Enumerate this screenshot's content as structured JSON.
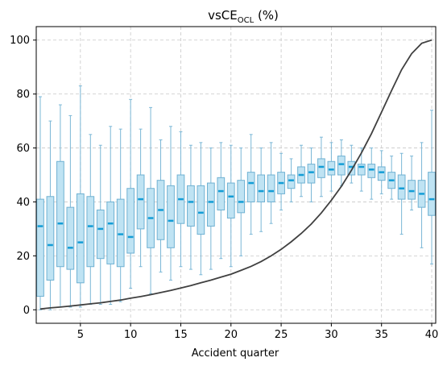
{
  "chart_data": {
    "type": "box",
    "title_main": "vsCE",
    "title_sub": "OCL",
    "title_suffix": " (%)",
    "xlabel": "Accident quarter",
    "ylabel": "",
    "xlim": [
      0.6,
      40.4
    ],
    "ylim": [
      -5,
      105
    ],
    "xticks": [
      5,
      10,
      15,
      20,
      25,
      30,
      35,
      40
    ],
    "yticks": [
      0,
      20,
      40,
      60,
      80,
      100
    ],
    "grid": true,
    "colors": {
      "box_fill": "#bfe3f3",
      "box_edge": "#6fb1d2",
      "median": "#139dd6",
      "line": "#404040"
    },
    "boxes": [
      {
        "x": 1,
        "low": 0,
        "q1": 5,
        "median": 31,
        "q3": 41,
        "high": 79
      },
      {
        "x": 2,
        "low": 0,
        "q1": 11,
        "median": 24,
        "q3": 42,
        "high": 70
      },
      {
        "x": 3,
        "low": 1,
        "q1": 16,
        "median": 32,
        "q3": 55,
        "high": 76
      },
      {
        "x": 4,
        "low": 1,
        "q1": 15,
        "median": 23,
        "q3": 38,
        "high": 72
      },
      {
        "x": 5,
        "low": 1,
        "q1": 10,
        "median": 25,
        "q3": 43,
        "high": 83
      },
      {
        "x": 6,
        "low": 2,
        "q1": 16,
        "median": 31,
        "q3": 42,
        "high": 65
      },
      {
        "x": 7,
        "low": 2,
        "q1": 19,
        "median": 30,
        "q3": 37,
        "high": 61
      },
      {
        "x": 8,
        "low": 2,
        "q1": 17,
        "median": 32,
        "q3": 40,
        "high": 68
      },
      {
        "x": 9,
        "low": 3,
        "q1": 16,
        "median": 28,
        "q3": 41,
        "high": 67
      },
      {
        "x": 10,
        "low": 8,
        "q1": 21,
        "median": 27,
        "q3": 45,
        "high": 78
      },
      {
        "x": 11,
        "low": 16,
        "q1": 30,
        "median": 41,
        "q3": 50,
        "high": 67
      },
      {
        "x": 12,
        "low": 6,
        "q1": 23,
        "median": 34,
        "q3": 45,
        "high": 75
      },
      {
        "x": 13,
        "low": 14,
        "q1": 26,
        "median": 37,
        "q3": 48,
        "high": 63
      },
      {
        "x": 14,
        "low": 11,
        "q1": 23,
        "median": 33,
        "q3": 46,
        "high": 68
      },
      {
        "x": 15,
        "low": 16,
        "q1": 32,
        "median": 41,
        "q3": 50,
        "high": 66
      },
      {
        "x": 16,
        "low": 15,
        "q1": 31,
        "median": 40,
        "q3": 46,
        "high": 61
      },
      {
        "x": 17,
        "low": 13,
        "q1": 28,
        "median": 36,
        "q3": 46,
        "high": 62
      },
      {
        "x": 18,
        "low": 15,
        "q1": 31,
        "median": 40,
        "q3": 47,
        "high": 60
      },
      {
        "x": 19,
        "low": 19,
        "q1": 37,
        "median": 44,
        "q3": 49,
        "high": 62
      },
      {
        "x": 20,
        "low": 16,
        "q1": 34,
        "median": 42,
        "q3": 47,
        "high": 61
      },
      {
        "x": 21,
        "low": 20,
        "q1": 36,
        "median": 40,
        "q3": 48,
        "high": 60
      },
      {
        "x": 22,
        "low": 28,
        "q1": 40,
        "median": 47,
        "q3": 51,
        "high": 65
      },
      {
        "x": 23,
        "low": 29,
        "q1": 40,
        "median": 44,
        "q3": 50,
        "high": 60
      },
      {
        "x": 24,
        "low": 32,
        "q1": 40,
        "median": 44,
        "q3": 50,
        "high": 62
      },
      {
        "x": 25,
        "low": 37,
        "q1": 43,
        "median": 47,
        "q3": 51,
        "high": 58
      },
      {
        "x": 26,
        "low": 40,
        "q1": 45,
        "median": 48,
        "q3": 50,
        "high": 56
      },
      {
        "x": 27,
        "low": 42,
        "q1": 47,
        "median": 50,
        "q3": 53,
        "high": 61
      },
      {
        "x": 28,
        "low": 40,
        "q1": 47,
        "median": 51,
        "q3": 54,
        "high": 60
      },
      {
        "x": 29,
        "low": 42,
        "q1": 49,
        "median": 53,
        "q3": 56,
        "high": 64
      },
      {
        "x": 30,
        "low": 44,
        "q1": 50,
        "median": 52,
        "q3": 55,
        "high": 62
      },
      {
        "x": 31,
        "low": 46,
        "q1": 50,
        "median": 54,
        "q3": 57,
        "high": 63
      },
      {
        "x": 32,
        "low": 47,
        "q1": 50,
        "median": 53,
        "q3": 55,
        "high": 61
      },
      {
        "x": 33,
        "low": 44,
        "q1": 50,
        "median": 53,
        "q3": 54,
        "high": 60
      },
      {
        "x": 34,
        "low": 41,
        "q1": 49,
        "median": 52,
        "q3": 54,
        "high": 60
      },
      {
        "x": 35,
        "low": 43,
        "q1": 48,
        "median": 51,
        "q3": 53,
        "high": 59
      },
      {
        "x": 36,
        "low": 41,
        "q1": 45,
        "median": 48,
        "q3": 51,
        "high": 57
      },
      {
        "x": 37,
        "low": 28,
        "q1": 41,
        "median": 45,
        "q3": 50,
        "high": 58
      },
      {
        "x": 38,
        "low": 37,
        "q1": 41,
        "median": 44,
        "q3": 48,
        "high": 57
      },
      {
        "x": 39,
        "low": 23,
        "q1": 38,
        "median": 43,
        "q3": 48,
        "high": 62
      },
      {
        "x": 40,
        "low": 17,
        "q1": 35,
        "median": 41,
        "q3": 51,
        "high": 74
      }
    ],
    "line": {
      "x": [
        1,
        2,
        3,
        4,
        5,
        6,
        7,
        8,
        9,
        10,
        11,
        12,
        13,
        14,
        15,
        16,
        17,
        18,
        19,
        20,
        21,
        22,
        23,
        24,
        25,
        26,
        27,
        28,
        29,
        30,
        31,
        32,
        33,
        34,
        35,
        36,
        37,
        38,
        39,
        40
      ],
      "y": [
        0.3,
        0.7,
        1.0,
        1.4,
        1.8,
        2.2,
        2.6,
        3.1,
        3.6,
        4.3,
        4.9,
        5.6,
        6.4,
        7.2,
        8.1,
        9.0,
        10.0,
        11.0,
        12.1,
        13.2,
        14.6,
        16.1,
        17.9,
        20.0,
        22.4,
        25.2,
        28.3,
        31.8,
        35.9,
        40.6,
        45.8,
        51.7,
        58.2,
        65.3,
        73.3,
        81.3,
        89.0,
        95.0,
        98.8,
        100.0
      ]
    }
  }
}
